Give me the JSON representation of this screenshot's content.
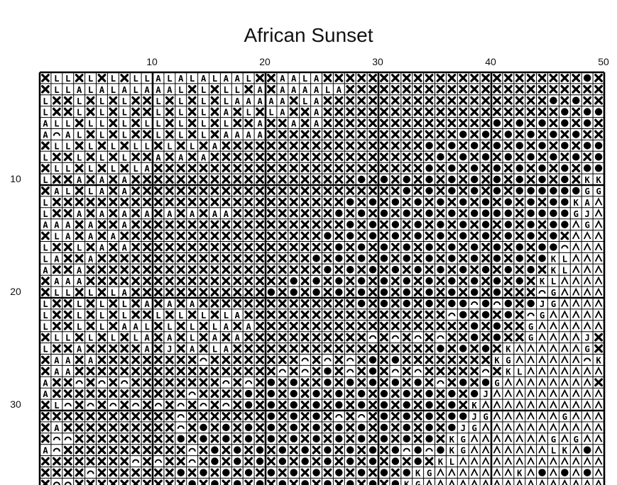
{
  "title": "African Sunset",
  "grid": {
    "columns": 50,
    "column_labels": [
      "10",
      "20",
      "30",
      "40",
      "50"
    ],
    "row_labels": [
      "10",
      "20",
      "30"
    ],
    "rows": [
      "XLLXLXLXLLALALALAALXXAALAXXXXXXXXXXXXXXXXXXXXXXXOX",
      "XLLALALALAAALXLXLLXAXAAAALAXXXXXXXXXXXXXXXXXXXXXXX",
      "LXXLXLXLXXLXLXLXLAAAAAXLAXXXXXXXXXXXXXXXXXXXXOXOXX",
      "LXXLXLXLXXLXLXLXAXLXLAXXAXXXXXXXXXXXXXXXXXXXXXOXOO",
      "ALLXLLXLXLLXLXLXLXXAXXAXAXXXXXXXXXXXXXXXOXOXOXOXOX",
      "A^ALXLXLXXLXLXLXAAAAXXXXXXXXXXXXXXXXXOXOXOXOXOXOXX",
      "XLLXLXLXLLXLXLXAXXXXXXXXXXXXXXXXXXOXOXOXOXOXOXOXOO",
      "LXXLXLXLXXAXAXAXXXXXXXXXXXXXXXXXXXXOXOXOXOXOXOXOXO",
      "XLLXLXLXLAXXXXXXXXXXXXXXXXXXXXXXXXOXOXOXOXOXOXOXOO",
      "LXXAXAXAXXXXXXXXXXXXXXXXXXXXOXOXOXOXOXOXOXOXOXOXKK",
      "XALXLAXAXXXXXXXXXXXXXXXXXXXXXXXXOXOXOXOXOXOOOOOOGG",
      "LXXXXXXXXXXXXXXXXXXXXXXXXXXOXOXOXOXOXOXOXOXOXOOKAV",
      "LXXAXAXAXAXAXAXAAXXXXXXXXXOXOXOXOXOXOXOOOOXOOOOGJV",
      "AAAXAXXAXXXXXXXXXXXXXXXXXXXOXOXOXOXOXOXOXOXOXOOVGV",
      "XLAXAXAXXXXXXXXXXXXXXXXXXOXOXOXOXOXOXOXOXOXOXOXVVV",
      "LXXLXAXAXXXXXXXXXXXXXXXXXXOXOXOXOXOXOXOXOXOXOO^VVV",
      "LAXXAXXXXXXXXXXXXXXXXXXXOXOXOXOXOXOXOXOXOXOXOKLVVV",
      "AXXAXXXXXXXXXXXXXXXXXXXXXOXOXOXOXOXOXOXOXOXOXKLVVV",
      "XAAAXXXXXXXXXXXXXXXXXXOXOXOXOXOXOXOXOXOXOXOXKLVVVV",
      "XLLXLXLAXXXXXXXXXXXXOXOXOXOXOXOXOXOXOXOXOXXX^GVVVV",
      "LXXLXLXLXAXAXAXXXXXXXXXXXXXXOXOXOXOXOO^O^OXOJGVVVV",
      "LXXLXLXLXXLXLXLXLAXXXXXXXXXXXXXXXXXX^OXOXOX^GVVVVV",
      "LXXLXLXAALXLXLXLAXAXXXXXXXXXXXXXXXXXXXOXOXXGVVVVVV",
      "XLLXLXLXLAXAXLXAXAXXXXXXXXXXX^X^X^X^XXOXOXXGVVVVJX",
      "LXXAXXXXXAXJXAXLAXXXXXXXXXXXXXXXXXXOXOXOXKVVVVVVGX",
      "XAAXAXXXXXXXXX^XXXXXXXX^X^X^XOXOXXXXXXXXKGVVVVVV^K",
      "XAAXXXXXXXXXXXXXXXXXX^X^XOX^XOX^X^XXXXX^XKLVVVVVVV",
      "AXX^X^X^XXXXXXXX^X^XOXOXXOXOXOXOXOX^XOXOGVVVVVVVVX",
      "AXXXXXXXXXXXX^XXXXOXOXOXOXOXOXOXOXOXOXOJVVVVVVVVVV",
      "XL^X^X^X^X^X^X^X^XOXOXOXOXOXOXOXOXOXOXKVVVVVVVVVVV",
      "XXXXXXXXXXXX^XXXXXXXOXOXOX^X^XOXOXOXOOJGVVVVVVGVVV",
      "XAXXXXXXXXXX^XOXOXOXOXOXOXOXOXOXOXOXOJGVVVVVVVVVVV",
      "X^^XXXXXXXXXOXOXOXOXOXOXOXOXOXOXOXOXKGVVVVVVVGVGVV",
      "A^XXXXXXXXXXX^XOXOXOXOXOXOXOXOXO^O^OKGVVVVVVVLKVOV",
      "XXXXXXXX^X^XX^XOXOXOXOXOXOXOXOXOXOXKLVVVVVVVVVVVVV",
      "XXXX^XXXXXXXOXOXOXOXOXOXOXOXOXOXOKGVVVVVVVKVOVOVOV",
      "X^^XXXXXXXXXXOXOXOXOXOXOXOXOXOXOKGVVVVVVVVVVVVVVVV"
    ]
  },
  "symbol_icons": {
    "X": "cross-mark-icon",
    "O": "filled-circle-icon",
    "^": "arc-icon",
    "V": "chevron-up-icon"
  }
}
